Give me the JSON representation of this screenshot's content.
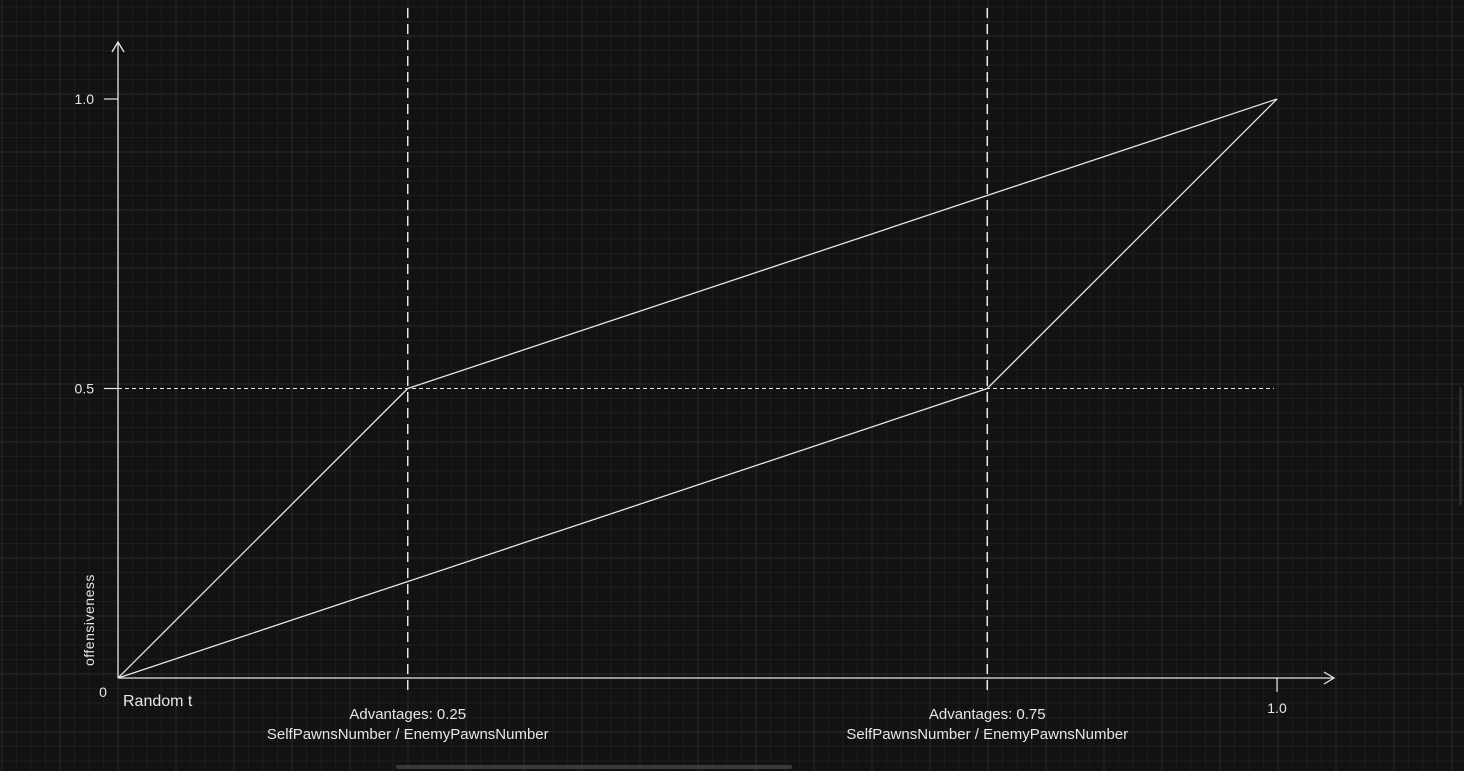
{
  "chart_data": {
    "type": "line",
    "xlabel": "Random t",
    "ylabel": "offensiveness",
    "origin_label": "0",
    "xlim": [
      0,
      1.0
    ],
    "ylim": [
      0,
      1.0
    ],
    "x_tick_labels": [
      {
        "value": 1.0,
        "label": "1.0"
      }
    ],
    "y_tick_labels": [
      {
        "value": 0.5,
        "label": "0.5"
      },
      {
        "value": 1.0,
        "label": "1.0"
      }
    ],
    "reference_lines": [
      {
        "axis": "x",
        "value": 0.25,
        "label_line1": "Advantages: 0.25",
        "label_line2": "SelfPawnsNumber / EnemyPawnsNumber"
      },
      {
        "axis": "x",
        "value": 0.75,
        "label_line1": "Advantages: 0.75",
        "label_line2": "SelfPawnsNumber / EnemyPawnsNumber"
      },
      {
        "axis": "y",
        "value": 0.5
      }
    ],
    "series": [
      {
        "x": [
          0,
          0.25,
          1.0
        ],
        "y": [
          0,
          0.5,
          1.0
        ]
      },
      {
        "x": [
          0,
          0.75,
          1.0
        ],
        "y": [
          0,
          0.5,
          1.0
        ]
      }
    ],
    "grid": true,
    "colors": {
      "background": "#121212",
      "grid": "#2a2a2a",
      "line": "#e6e6e6"
    }
  }
}
